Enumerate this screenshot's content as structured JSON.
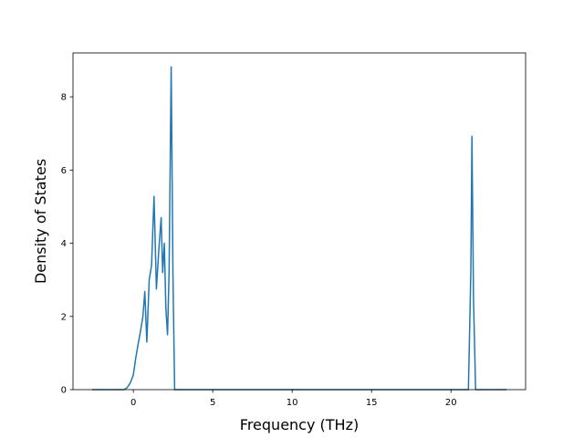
{
  "chart_data": {
    "type": "line",
    "title": "",
    "xlabel": "Frequency (THz)",
    "ylabel": "Density of States",
    "xlim": [
      -3.8,
      24.7
    ],
    "ylim": [
      0,
      9.2
    ],
    "grid": false,
    "legend": "none",
    "x_ticks": [
      0,
      5,
      10,
      15,
      20
    ],
    "x_tick_labels": [
      "0",
      "5",
      "10",
      "15",
      "20"
    ],
    "y_ticks": [
      0,
      2,
      4,
      6,
      8
    ],
    "y_tick_labels": [
      "0",
      "2",
      "4",
      "6",
      "8"
    ],
    "series": [
      {
        "color": "#1f77b4",
        "x": [
          -2.6,
          -1.5,
          -0.6,
          -0.4,
          -0.2,
          0.0,
          0.15,
          0.3,
          0.45,
          0.6,
          0.72,
          0.85,
          1.0,
          1.15,
          1.3,
          1.45,
          1.6,
          1.75,
          1.85,
          1.95,
          2.05,
          2.15,
          2.25,
          2.38,
          2.5,
          2.6,
          5.0,
          10.0,
          15.0,
          20.0,
          21.1,
          21.25,
          21.32,
          21.42,
          21.55,
          22.0,
          23.5
        ],
        "y": [
          0.0,
          0.0,
          0.0,
          0.05,
          0.18,
          0.4,
          0.85,
          1.25,
          1.6,
          2.0,
          2.68,
          1.3,
          3.0,
          3.4,
          5.28,
          2.75,
          3.8,
          4.7,
          3.2,
          4.0,
          2.2,
          1.5,
          3.2,
          8.82,
          3.0,
          0.0,
          0.0,
          0.0,
          0.0,
          0.0,
          0.0,
          3.2,
          6.92,
          2.5,
          0.0,
          0.0,
          0.0
        ]
      }
    ]
  }
}
